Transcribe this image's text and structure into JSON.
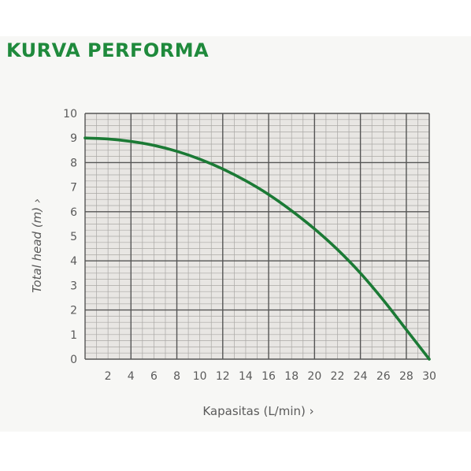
{
  "chart_data": {
    "type": "line",
    "title": "KURVA PERFORMA",
    "xlabel": "Kapasitas (L/min)",
    "ylabel": "Total head (m)",
    "axis_arrow": "›",
    "xlim": [
      0,
      30
    ],
    "ylim": [
      0,
      10
    ],
    "x_ticks": [
      2,
      4,
      6,
      8,
      10,
      12,
      14,
      16,
      18,
      20,
      22,
      24,
      26,
      28,
      30
    ],
    "y_ticks": [
      0,
      1,
      2,
      3,
      4,
      5,
      6,
      7,
      8,
      9,
      10
    ],
    "grid": true,
    "series": [
      {
        "x": [
          0,
          2,
          4,
          6,
          8,
          10,
          12,
          14,
          16,
          18,
          20,
          22,
          24,
          26,
          28,
          30
        ],
        "y": [
          9.0,
          8.96,
          8.86,
          8.7,
          8.46,
          8.14,
          7.74,
          7.26,
          6.7,
          6.04,
          5.3,
          4.46,
          3.5,
          2.4,
          1.2,
          0.0
        ]
      }
    ],
    "colors": {
      "line": "#1b7a35",
      "title": "#1f8a3c",
      "plot_bg": "#e8e6e3",
      "minor_grid": "#aaa8a5",
      "major_grid": "#555555",
      "text": "#5a5a5a"
    }
  }
}
